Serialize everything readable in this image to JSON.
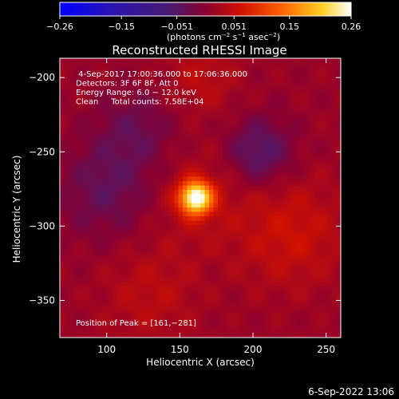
{
  "chart_data": {
    "type": "heatmap",
    "title": "Reconstructed RHESSI Image",
    "xlabel": "Heliocentric X (arcsec)",
    "ylabel": "Heliocentric Y (arcsec)",
    "xlim": [
      68,
      260
    ],
    "ylim": [
      -375,
      -187
    ],
    "x_ticks": [
      100,
      150,
      200,
      250
    ],
    "x_tick_labels": [
      "100",
      "150",
      "200",
      "250"
    ],
    "y_ticks": [
      -200,
      -250,
      -300,
      -350
    ],
    "y_tick_labels": [
      "−200",
      "−250",
      "−300",
      "−350"
    ],
    "colorbar": {
      "range": [
        -0.26,
        0.26
      ],
      "ticks": [
        -0.26,
        -0.15,
        -0.051,
        0.051,
        0.15,
        0.26
      ],
      "tick_labels": [
        "−0.26",
        "−0.15",
        "−0.051",
        "0.051",
        "0.15",
        "0.26"
      ],
      "unit_main": "(photons cm",
      "unit_sup1": "−2",
      "unit_mid1": " s",
      "unit_sup2": "−1",
      "unit_mid2": " asec",
      "unit_sup3": "−2",
      "unit_end": ")"
    },
    "annotations": [
      " 4‑Sep‑2017 17:00:36.000 to 17:06:36.000",
      "Detectors: 3F 6F 8F, Att 0",
      "Energy Range: 6.0 − 12.0 keV",
      "Clean     Total counts: 7.58E+04"
    ],
    "peak_label": "Position of Peak = [161,−281]",
    "peak": {
      "x": 161,
      "y": -281,
      "value": 0.26
    },
    "features": [
      {
        "kind": "negative-region",
        "x": 95,
        "y": -270,
        "value": -0.05
      },
      {
        "kind": "negative-region",
        "x": 205,
        "y": -250,
        "value": -0.07
      },
      {
        "kind": "positive-region",
        "x": 225,
        "y": -300,
        "value": 0.05
      }
    ]
  },
  "footer": {
    "timestamp": "6‑Sep‑2022 13:06"
  }
}
